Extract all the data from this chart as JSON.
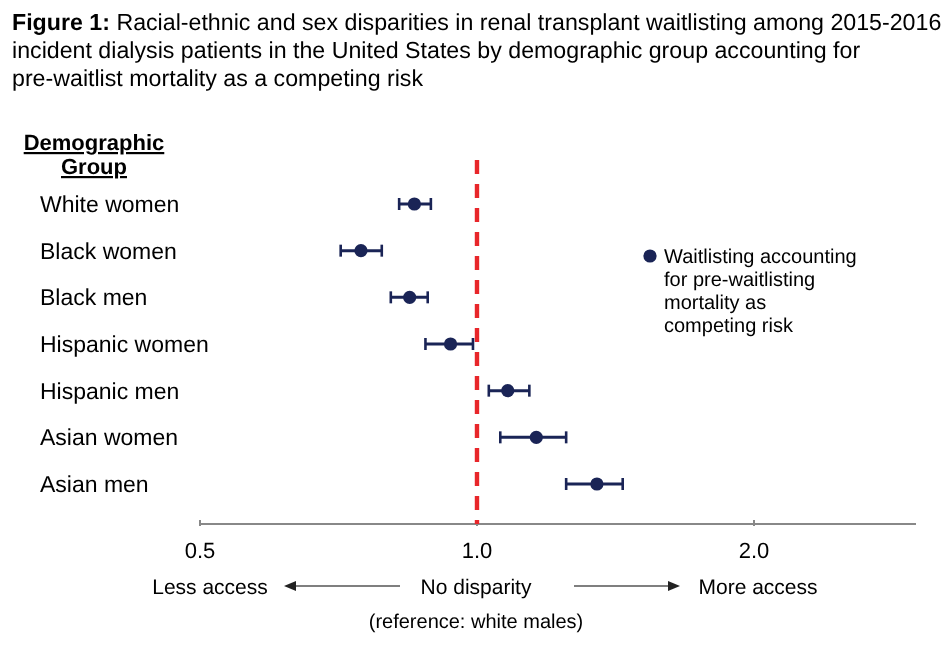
{
  "chart_data": {
    "type": "scatter",
    "orientation": "horizontal",
    "title": "Figure 1: Racial-ethnic and sex disparities in renal transplant waitlisting among 2015-2016 incident dialysis patients in the United States by demographic group accounting for pre-waitlist mortality as a competing risk",
    "ylabel": "Demographic Group",
    "categories": [
      "White women",
      "Black women",
      "Black men",
      "Hispanic women",
      "Hispanic men",
      "Asian women",
      "Asian men"
    ],
    "series": [
      {
        "name": "Waitlisting accounting for pre-waitlisting mortality as competing risk",
        "color": "#1a2456",
        "values": [
          0.855,
          0.748,
          0.845,
          0.936,
          1.08,
          1.16,
          1.35
        ],
        "errors": [
          [
            0.823,
            0.891
          ],
          [
            0.711,
            0.788
          ],
          [
            0.806,
            0.884
          ],
          [
            0.879,
            0.99
          ],
          [
            1.03,
            1.14
          ],
          [
            1.06,
            1.25
          ],
          [
            1.25,
            1.44
          ]
        ]
      }
    ],
    "log": "x",
    "xlim": [
      0.5,
      3
    ],
    "xticks": [
      0.5,
      {
        "value": 1,
        "label": "1.0"
      },
      {
        "value": 2,
        "label": "2.0"
      }
    ],
    "ref_lines": [
      {
        "axis": "x",
        "value": 1,
        "color": "#e8262a",
        "line_style": "dashed"
      }
    ],
    "marker": "circle",
    "legend": "right",
    "grid": false,
    "annotations": [
      "Less access",
      "No disparity",
      "(reference: white males)",
      "More access"
    ]
  }
}
